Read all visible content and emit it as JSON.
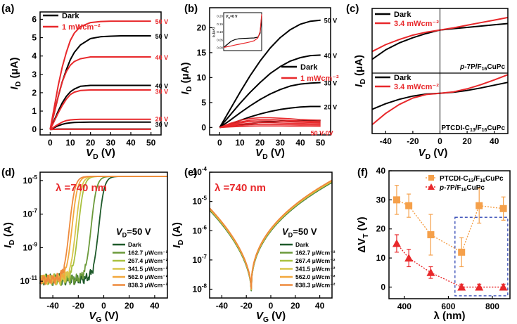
{
  "chart_data": [
    {
      "id": "a",
      "panel_label": "(a)",
      "type": "line",
      "xlabel_main": "V",
      "xlabel_sub": "D",
      "xlabel_unit": " (V)",
      "ylabel_main": "I",
      "ylabel_sub": "D",
      "ylabel_unit": " (μA)",
      "xlim": [
        -5,
        55
      ],
      "ylim": [
        -0.3,
        6.4
      ],
      "xticks": [
        0,
        10,
        20,
        30,
        40,
        50
      ],
      "yticks": [
        0,
        1,
        2,
        3,
        4,
        5,
        6
      ],
      "legend": [
        {
          "name": "Dark",
          "color": "#000000"
        },
        {
          "name": "1 mWcm⁻²",
          "color": "#e8282b"
        }
      ],
      "x": [
        0,
        2,
        4,
        6,
        8,
        10,
        12,
        15,
        20,
        25,
        30,
        35,
        40,
        45,
        50
      ],
      "series": [
        {
          "name": "Dark 50 V",
          "color": "#000000",
          "values": [
            0,
            0.9,
            1.8,
            2.6,
            3.25,
            3.8,
            4.2,
            4.6,
            4.95,
            5.05,
            5.08,
            5.1,
            5.1,
            5.1,
            5.1
          ]
        },
        {
          "name": "Dark 40 V",
          "color": "#000000",
          "values": [
            0,
            0.5,
            1.0,
            1.45,
            1.8,
            2.05,
            2.2,
            2.35,
            2.4,
            2.4,
            2.4,
            2.4,
            2.4,
            2.4,
            2.4
          ]
        },
        {
          "name": "Dark 30 V",
          "color": "#000000",
          "values": [
            0,
            0.1,
            0.2,
            0.28,
            0.33,
            0.36,
            0.38,
            0.39,
            0.4,
            0.4,
            0.4,
            0.4,
            0.4,
            0.4,
            0.4
          ]
        },
        {
          "name": "Dark 20 V",
          "color": "#000000",
          "values": [
            0,
            0.01,
            0.02,
            0.02,
            0.02,
            0.02,
            0.02,
            0.02,
            0.02,
            0.02,
            0.02,
            0.02,
            0.02,
            0.02,
            0.02
          ]
        },
        {
          "name": "Light 50 V",
          "color": "#e8282b",
          "values": [
            0,
            1.2,
            2.4,
            3.4,
            4.2,
            4.85,
            5.25,
            5.6,
            5.82,
            5.88,
            5.9,
            5.9,
            5.9,
            5.9,
            5.9
          ]
        },
        {
          "name": "Light 40 V",
          "color": "#e8282b",
          "values": [
            0,
            0.9,
            1.8,
            2.6,
            3.15,
            3.5,
            3.7,
            3.85,
            3.95,
            3.95,
            3.95,
            3.95,
            3.95,
            3.95,
            3.95
          ]
        },
        {
          "name": "Light 30 V",
          "color": "#e8282b",
          "values": [
            0,
            0.45,
            0.9,
            1.3,
            1.65,
            1.9,
            2.03,
            2.12,
            2.15,
            2.15,
            2.15,
            2.15,
            2.15,
            2.15,
            2.15
          ]
        },
        {
          "name": "Light 20 V",
          "color": "#e8282b",
          "values": [
            0,
            0.14,
            0.28,
            0.4,
            0.48,
            0.52,
            0.54,
            0.55,
            0.55,
            0.55,
            0.55,
            0.55,
            0.55,
            0.55,
            0.55
          ]
        },
        {
          "name": "Light 0 V",
          "color": "#e8282b",
          "values": [
            0,
            0.005,
            0.01,
            0.01,
            0.01,
            0.01,
            0.01,
            0.01,
            0.01,
            0.01,
            0.01,
            0.01,
            0.01,
            0.01,
            0.01
          ]
        }
      ],
      "annotations": [
        {
          "text": "50 V",
          "color": "#e8282b",
          "x": 50,
          "y": 5.9
        },
        {
          "text": "50 V",
          "color": "#000000",
          "x": 50,
          "y": 5.1
        },
        {
          "text": "40 V",
          "color": "#e8282b",
          "x": 50,
          "y": 3.95
        },
        {
          "text": "40 V",
          "color": "#000000",
          "x": 50,
          "y": 2.4
        },
        {
          "text": "30 V",
          "color": "#e8282b",
          "x": 50,
          "y": 2.1
        },
        {
          "text": "20 V",
          "color": "#e8282b",
          "x": 50,
          "y": 0.6
        },
        {
          "text": "30 V",
          "color": "#000000",
          "x": 50,
          "y": 0.3
        }
      ]
    },
    {
      "id": "b",
      "panel_label": "(b)",
      "type": "line",
      "xlabel_main": "V",
      "xlabel_sub": "D",
      "xlabel_unit": " (V)",
      "ylabel_main": "I",
      "ylabel_sub": "D",
      "ylabel_unit": " (μA)",
      "xlim": [
        -5,
        55
      ],
      "ylim": [
        -1.5,
        24
      ],
      "xticks": [
        0,
        10,
        20,
        30,
        40,
        50
      ],
      "yticks": [
        0,
        5,
        10,
        15,
        20
      ],
      "legend": [
        {
          "name": "Dark",
          "color": "#000000"
        },
        {
          "name": "1 mWcm⁻²",
          "color": "#e8282b"
        }
      ],
      "x": [
        0,
        5,
        10,
        15,
        20,
        25,
        30,
        35,
        40,
        45,
        50
      ],
      "series": [
        {
          "name": "Dark 50 V",
          "color": "#000000",
          "values": [
            0,
            3.5,
            7,
            10.3,
            13.3,
            15.9,
            18,
            19.6,
            20.7,
            21.3,
            21.5
          ]
        },
        {
          "name": "Dark 40 V",
          "color": "#000000",
          "values": [
            0,
            2.4,
            4.8,
            7,
            9,
            10.8,
            12.2,
            13.3,
            14,
            14.4,
            14.5
          ]
        },
        {
          "name": "Dark 30 V",
          "color": "#000000",
          "values": [
            0,
            1.4,
            2.9,
            4.3,
            5.6,
            6.7,
            7.6,
            8.3,
            8.7,
            8.9,
            9.0
          ]
        },
        {
          "name": "Dark 20 V",
          "color": "#000000",
          "values": [
            0,
            0.7,
            1.4,
            2.1,
            2.7,
            3.2,
            3.6,
            3.9,
            4.1,
            4.2,
            4.2
          ]
        },
        {
          "name": "Dark 10 V",
          "color": "#000000",
          "values": [
            0,
            0.3,
            0.55,
            0.8,
            1.0,
            1.15,
            1.25,
            1.32,
            1.36,
            1.38,
            1.4
          ]
        },
        {
          "name": "Light 1",
          "color": "#e8282b",
          "values": [
            0,
            0.8,
            1.4,
            1.8,
            1.95,
            1.95,
            1.85,
            1.75,
            1.6,
            1.5,
            1.45
          ]
        },
        {
          "name": "Light 2",
          "color": "#e8282b",
          "values": [
            0,
            0.6,
            1.1,
            1.45,
            1.6,
            1.6,
            1.5,
            1.4,
            1.3,
            1.22,
            1.18
          ]
        },
        {
          "name": "Light 3",
          "color": "#e8282b",
          "values": [
            0,
            0.5,
            0.9,
            1.2,
            1.3,
            1.3,
            1.25,
            1.15,
            1.05,
            1.0,
            0.95
          ]
        },
        {
          "name": "Light 4",
          "color": "#e8282b",
          "values": [
            0,
            0.35,
            0.65,
            0.85,
            0.95,
            0.95,
            0.9,
            0.85,
            0.8,
            0.75,
            0.72
          ]
        },
        {
          "name": "Light 5",
          "color": "#e8282b",
          "values": [
            0,
            0.2,
            0.4,
            0.55,
            0.6,
            0.6,
            0.58,
            0.55,
            0.52,
            0.5,
            0.48
          ]
        },
        {
          "name": "Light 6",
          "color": "#e8282b",
          "values": [
            0,
            0.1,
            0.2,
            0.28,
            0.3,
            0.3,
            0.3,
            0.28,
            0.27,
            0.26,
            0.25
          ]
        }
      ],
      "annotations": [
        {
          "text": "50 V",
          "color": "#000000",
          "x": 50,
          "y": 21.5
        },
        {
          "text": "40 V",
          "color": "#000000",
          "x": 50,
          "y": 14.5
        },
        {
          "text": "30 V",
          "color": "#000000",
          "x": 50,
          "y": 9.0
        },
        {
          "text": "20 V",
          "color": "#000000",
          "x": 50,
          "y": 4.2
        },
        {
          "text": "50 V-0V",
          "color": "#e8282b",
          "x": 50,
          "y": -1.0
        }
      ],
      "inset": {
        "label": "V",
        "label_sub": "G",
        "label_rest": "=0 V",
        "ylabel": "I",
        "ylabel_sub": "D",
        "ylabel_unit": " (μA)",
        "yticks": [
          "0.00",
          "0.05",
          "0.10",
          "0.15",
          "0.20"
        ],
        "ylim": [
          -0.02,
          0.22
        ],
        "x": [
          0,
          5,
          10,
          15,
          20,
          25,
          30,
          35,
          40,
          45,
          48,
          50
        ],
        "dark": [
          0.0,
          0.02,
          0.04,
          0.05,
          0.055,
          0.057,
          0.058,
          0.059,
          0.06,
          0.065,
          0.09,
          0.2
        ],
        "light": [
          0.0,
          0.005,
          0.01,
          0.015,
          0.02,
          0.025,
          0.03,
          0.035,
          0.042,
          0.06,
          0.1,
          0.21
        ]
      }
    },
    {
      "id": "c",
      "panel_label": "(c)",
      "type": "line",
      "xlabel_main": "V",
      "xlabel_sub": "D",
      "xlabel_unit": " (V)",
      "ylabel_main": "I",
      "ylabel_sub": "D",
      "ylabel_unit": " (μA)",
      "xlim": [
        -50,
        50
      ],
      "xticks": [
        -40,
        -20,
        0,
        20,
        40
      ],
      "legend": [
        {
          "name": "Dark",
          "color": "#000000"
        },
        {
          "name": "3.4 mWcm⁻²",
          "color": "#e8282b"
        }
      ],
      "x": [
        -50,
        -40,
        -30,
        -20,
        -10,
        0,
        10,
        20,
        30,
        40,
        50
      ],
      "top": {
        "label": "p-7P/F16CuPc",
        "ylim": [
          -5,
          2.5
        ],
        "dark": [
          -3.4,
          -2.3,
          -1.5,
          -0.9,
          -0.4,
          0,
          0.15,
          0.3,
          0.45,
          0.6,
          0.75
        ],
        "light": [
          -2.5,
          -1.7,
          -1.1,
          -0.6,
          -0.25,
          0,
          0.25,
          0.55,
          0.85,
          1.15,
          1.45
        ]
      },
      "bottom": {
        "label": "PTCDI-C13/F16CuPc",
        "ylim": [
          -10,
          5
        ],
        "dark": [
          -4.0,
          -2.6,
          -1.5,
          -0.7,
          -0.2,
          0,
          0.25,
          0.7,
          1.3,
          2.0,
          2.7
        ],
        "light": [
          -7.8,
          -5.0,
          -2.8,
          -1.2,
          -0.3,
          0,
          0.35,
          1.1,
          2.1,
          3.3,
          4.6
        ]
      }
    },
    {
      "id": "d",
      "panel_label": "(d)",
      "type": "line",
      "xlabel_main": "V",
      "xlabel_sub": "G",
      "xlabel_unit": " (V)",
      "ylabel_main": "I",
      "ylabel_sub": "D",
      "ylabel_unit": " (A)",
      "yscale": "log",
      "ylim_exp": [
        -12,
        -4.5
      ],
      "xlim": [
        -50,
        50
      ],
      "xticks": [
        -40,
        -20,
        0,
        20,
        40
      ],
      "yticks": [
        {
          "base": "10",
          "exp": "-5",
          "e": -5
        },
        {
          "base": "10",
          "exp": "-7",
          "e": -7
        },
        {
          "base": "10",
          "exp": "-9",
          "e": -9
        },
        {
          "base": "10",
          "exp": "-11",
          "e": -11
        }
      ],
      "wavelength_label": "λ =740 nm",
      "bias_label_main": "V",
      "bias_label_sub": "D",
      "bias_label_rest": "=50 V",
      "legend": [
        {
          "name": "Dark",
          "color": "#1e5a2a"
        },
        {
          "name": "162.7 μWcm⁻²",
          "color": "#6b9a3a"
        },
        {
          "name": "267.4 μWcm⁻²",
          "color": "#a9c13f"
        },
        {
          "name": "341.5 μWcm⁻²",
          "color": "#d9c64a"
        },
        {
          "name": "562.0 μWcm⁻²",
          "color": "#f2a83c"
        },
        {
          "name": "838.3 μWcm⁻²",
          "color": "#ee8a3c"
        }
      ],
      "series_vth": [
        -4,
        -10,
        -20,
        -22,
        -25,
        -27
      ],
      "series_names": [
        "Dark",
        "162.7 μWcm⁻²",
        "267.4 μWcm⁻²",
        "341.5 μWcm⁻²",
        "562.0 μWcm⁻²",
        "838.3 μWcm⁻²"
      ],
      "off_level_exp": -10.9,
      "on_level_exp": -4.75
    },
    {
      "id": "e",
      "panel_label": "(e)",
      "type": "line",
      "xlabel_main": "V",
      "xlabel_sub": "G",
      "xlabel_unit": " (V)",
      "ylabel_main": "I",
      "ylabel_sub": "D",
      "ylabel_unit": " (A)",
      "yscale": "log",
      "ylim_exp": [
        -8.3,
        -4
      ],
      "xlim": [
        -50,
        50
      ],
      "xticks": [
        -40,
        -20,
        0,
        20,
        40
      ],
      "yticks": [
        {
          "base": "10",
          "exp": "-4",
          "e": -4
        },
        {
          "base": "10",
          "exp": "-5",
          "e": -5
        },
        {
          "base": "10",
          "exp": "-6",
          "e": -6
        },
        {
          "base": "10",
          "exp": "-7",
          "e": -7
        },
        {
          "base": "10",
          "exp": "-8",
          "e": -8
        }
      ],
      "wavelength_label": "λ =740 nm",
      "bias_label_main": "V",
      "bias_label_sub": "D",
      "bias_label_rest": "=50 V",
      "legend": [
        {
          "name": "Dark",
          "color": "#1e5a2a"
        },
        {
          "name": "162.7 μWcm⁻²",
          "color": "#6b9a3a"
        },
        {
          "name": "267.4 μWcm⁻²",
          "color": "#a9c13f"
        },
        {
          "name": "341.5 μWcm⁻²",
          "color": "#d9c64a"
        },
        {
          "name": "562.0 μWcm⁻²",
          "color": "#f2a83c"
        },
        {
          "name": "838.3 μWcm⁻²",
          "color": "#ee8a3c"
        }
      ],
      "min_x": -16,
      "min_exp": -8.05,
      "left_exp": -5.3,
      "right_exp": -4.35
    },
    {
      "id": "f",
      "panel_label": "(f)",
      "type": "scatter",
      "xlabel": "λ (nm)",
      "ylabel_main": "ΔV",
      "ylabel_sub": "T",
      "ylabel_unit": " (V)",
      "xlim": [
        330,
        880
      ],
      "ylim": [
        -4,
        40
      ],
      "xticks": [
        400,
        600,
        800
      ],
      "yticks": [
        0,
        10,
        20,
        30,
        40
      ],
      "series": [
        {
          "name": "PTCDI-C13/F16CuPc",
          "color": "#f5a04a",
          "marker": "square",
          "x": [
            365,
            420,
            520,
            660,
            740,
            850
          ],
          "y": [
            30,
            28,
            18,
            12,
            28,
            27
          ],
          "err": [
            5,
            4,
            7,
            5,
            6,
            4
          ]
        },
        {
          "name": "p-7P/F16CuPc",
          "color": "#e8282b",
          "marker": "triangle",
          "x": [
            365,
            420,
            520,
            660,
            740,
            850
          ],
          "y": [
            15,
            10,
            5,
            0,
            0,
            0
          ],
          "err": [
            3,
            3,
            2,
            1,
            1,
            1
          ]
        }
      ],
      "legend_entries": [
        {
          "text": "PTCDI-C",
          "sub": "13",
          "rest": "/F",
          "sub2": "16",
          "rest2": "CuPc",
          "italic": false
        },
        {
          "text": "p-7P/F",
          "sub": "16",
          "rest": "CuPc",
          "sub2": "",
          "rest2": "",
          "italic": true
        }
      ],
      "highlight_box": {
        "x": [
          630,
          870
        ],
        "y": [
          -3,
          24
        ]
      }
    }
  ]
}
